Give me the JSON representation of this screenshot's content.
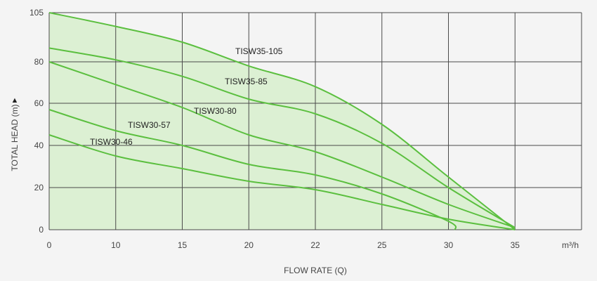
{
  "chart_data": {
    "type": "line",
    "title": "",
    "xlabel": "FLOW RATE (Q)",
    "ylabel": "TOTAL HEAD (m)",
    "ylabel_marker": "▲",
    "x_unit": "m³/h",
    "x_tick_labels": [
      "0",
      "10",
      "15",
      "20",
      "22",
      "25",
      "30",
      "35"
    ],
    "y_tick_labels": [
      "0",
      "20",
      "40",
      "60",
      "80",
      "105"
    ],
    "grid": true,
    "series": [
      {
        "name": "TISW35-105",
        "shaded": true,
        "x": [
          0,
          10,
          15,
          20,
          22,
          25,
          30,
          35
        ],
        "y": [
          105,
          98,
          90,
          78,
          68,
          50,
          25,
          0
        ]
      },
      {
        "name": "TISW35-85",
        "x": [
          0,
          10,
          15,
          20,
          22,
          25,
          30,
          35
        ],
        "y": [
          87,
          81,
          73,
          62,
          55,
          41,
          20,
          1
        ]
      },
      {
        "name": "TISW30-80",
        "x": [
          0,
          10,
          15,
          20,
          22,
          25,
          30,
          35
        ],
        "y": [
          80,
          69,
          58,
          45,
          37,
          25,
          12,
          1
        ]
      },
      {
        "name": "TISW30-57",
        "x": [
          0,
          10,
          15,
          20,
          22,
          25,
          30,
          30.5
        ],
        "y": [
          57,
          47,
          40,
          31,
          26,
          17,
          4,
          0
        ]
      },
      {
        "name": "TISW30-46",
        "x": [
          0,
          10,
          15,
          20,
          22,
          25,
          30,
          35
        ],
        "y": [
          45,
          35,
          29,
          23,
          19,
          12,
          5,
          0
        ]
      }
    ],
    "colors": {
      "line": "#5bbf3f",
      "fill": "#dcf0d3",
      "grid": "#4a4a4a"
    }
  }
}
